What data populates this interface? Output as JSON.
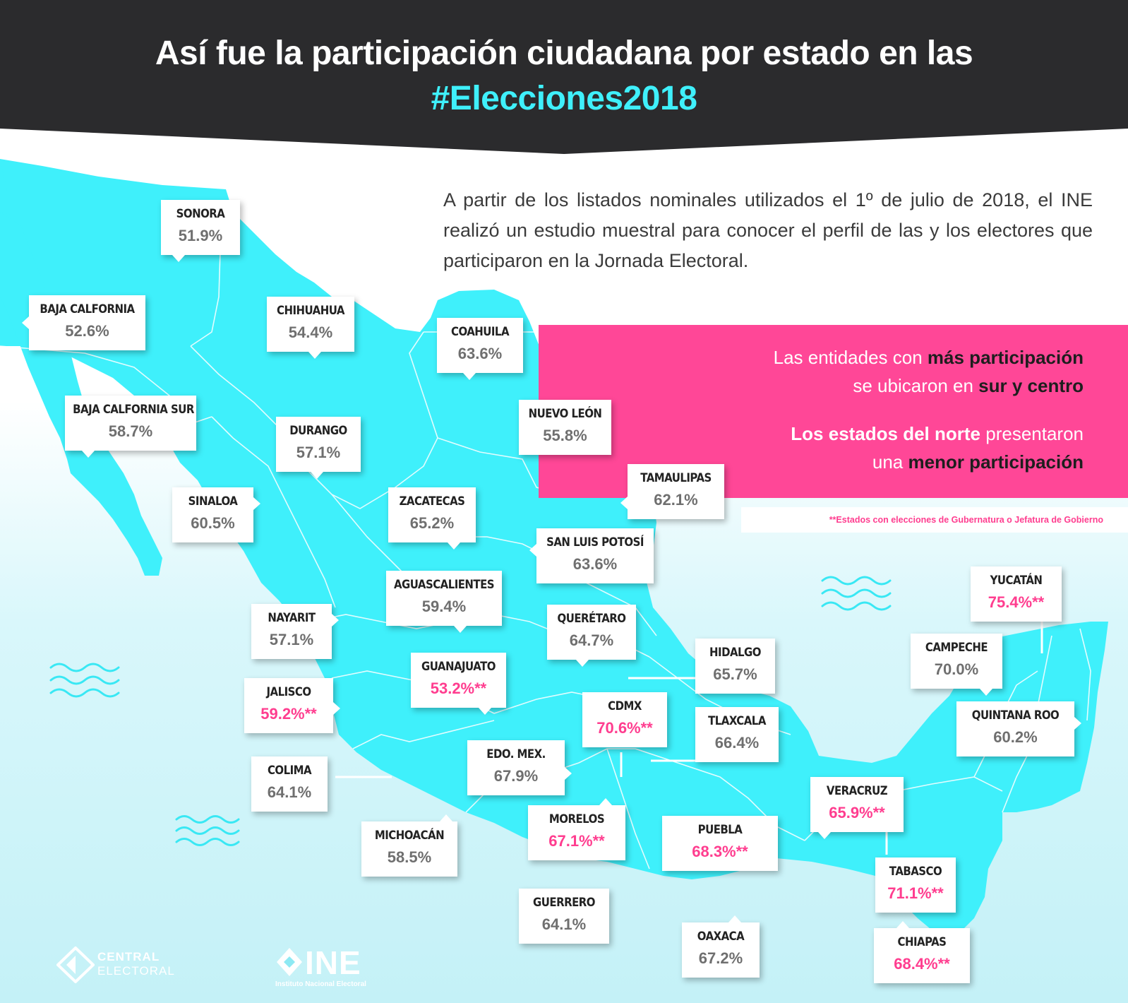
{
  "header": {
    "title_line1": "Así fue la participación ciudadana por estado en las",
    "title_line2": "#Elecciones2018"
  },
  "intro": "A partir de los listados nominales utilizados el 1º de julio de 2018, el INE realizó un estudio muestral para conocer el perfil de las y los electores que participaron en la Jornada Electoral.",
  "highlight": {
    "line1_a": "Las entidades con ",
    "line1_b": "más participación",
    "line2_a": "se ubicaron en ",
    "line2_b": "sur y centro",
    "line3_a": "Los estados del norte",
    "line3_b": " presentaron",
    "line4_a": "una ",
    "line4_b": "menor participación"
  },
  "note": "**Estados con elecciones de Gubernatura o Jefatura de Gobierno",
  "colors": {
    "map": "#3ff0fb",
    "accent": "#ff4797",
    "header": "#2b2b2d"
  },
  "states": [
    {
      "id": "sonora",
      "name": "SONORA",
      "value": "51.9%",
      "pink": false
    },
    {
      "id": "baja-california",
      "name": "BAJA CALFORNIA",
      "value": "52.6%",
      "pink": false
    },
    {
      "id": "chihuahua",
      "name": "CHIHUAHUA",
      "value": "54.4%",
      "pink": false
    },
    {
      "id": "coahuila",
      "name": "COAHUILA",
      "value": "63.6%",
      "pink": false
    },
    {
      "id": "baja-california-sur",
      "name": "BAJA CALFORNIA SUR",
      "value": "58.7%",
      "pink": false
    },
    {
      "id": "durango",
      "name": "DURANGO",
      "value": "57.1%",
      "pink": false
    },
    {
      "id": "nuevo-leon",
      "name": "NUEVO LEÓN",
      "value": "55.8%",
      "pink": false
    },
    {
      "id": "tamaulipas",
      "name": "TAMAULIPAS",
      "value": "62.1%",
      "pink": false
    },
    {
      "id": "sinaloa",
      "name": "SINALOA",
      "value": "60.5%",
      "pink": false
    },
    {
      "id": "zacatecas",
      "name": "ZACATECAS",
      "value": "65.2%",
      "pink": false
    },
    {
      "id": "san-luis-potosi",
      "name": "SAN LUIS POTOSÍ",
      "value": "63.6%",
      "pink": false
    },
    {
      "id": "aguascalientes",
      "name": "AGUASCALIENTES",
      "value": "59.4%",
      "pink": false
    },
    {
      "id": "nayarit",
      "name": "NAYARIT",
      "value": "57.1%",
      "pink": false
    },
    {
      "id": "queretaro",
      "name": "QUERÉTARO",
      "value": "64.7%",
      "pink": false
    },
    {
      "id": "yucatan",
      "name": "YUCATÁN",
      "value": "75.4%**",
      "pink": true
    },
    {
      "id": "hidalgo",
      "name": "HIDALGO",
      "value": "65.7%",
      "pink": false
    },
    {
      "id": "campeche",
      "name": "CAMPECHE",
      "value": "70.0%",
      "pink": false
    },
    {
      "id": "guanajuato",
      "name": "GUANAJUATO",
      "value": "53.2%**",
      "pink": true
    },
    {
      "id": "jalisco",
      "name": "JALISCO",
      "value": "59.2%**",
      "pink": true
    },
    {
      "id": "cdmx",
      "name": "CDMX",
      "value": "70.6%**",
      "pink": true
    },
    {
      "id": "tlaxcala",
      "name": "TLAXCALA",
      "value": "66.4%",
      "pink": false
    },
    {
      "id": "quintana-roo",
      "name": "QUINTANA ROO",
      "value": "60.2%",
      "pink": false
    },
    {
      "id": "colima",
      "name": "COLIMA",
      "value": "64.1%",
      "pink": false
    },
    {
      "id": "edo-mex",
      "name": "EDO. MEX.",
      "value": "67.9%",
      "pink": false
    },
    {
      "id": "veracruz",
      "name": "VERACRUZ",
      "value": "65.9%**",
      "pink": true
    },
    {
      "id": "morelos",
      "name": "MORELOS",
      "value": "67.1%**",
      "pink": true
    },
    {
      "id": "puebla",
      "name": "PUEBLA",
      "value": "68.3%**",
      "pink": true
    },
    {
      "id": "michoacan",
      "name": "MICHOACÁN",
      "value": "58.5%",
      "pink": false
    },
    {
      "id": "tabasco",
      "name": "TABASCO",
      "value": "71.1%**",
      "pink": true
    },
    {
      "id": "guerrero",
      "name": "GUERRERO",
      "value": "64.1%",
      "pink": false
    },
    {
      "id": "oaxaca",
      "name": "OAXACA",
      "value": "67.2%",
      "pink": false
    },
    {
      "id": "chiapas",
      "name": "CHIAPAS",
      "value": "68.4%**",
      "pink": true
    }
  ],
  "logos": {
    "central_line1": "CENTRAL",
    "central_line2": "ELECTORAL",
    "ine": "INE",
    "ine_sub": "Instituto Nacional Electoral"
  }
}
